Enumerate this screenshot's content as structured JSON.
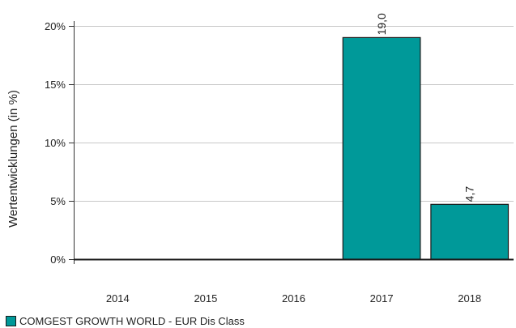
{
  "chart_data": {
    "type": "bar",
    "categories": [
      "2014",
      "2015",
      "2016",
      "2017",
      "2018"
    ],
    "series": [
      {
        "name": "COMGEST GROWTH WORLD - EUR Dis Class",
        "values": [
          null,
          null,
          null,
          19.0,
          4.7
        ],
        "data_labels": [
          "",
          "",
          "",
          "19,0",
          "4,7"
        ],
        "color": "#009999"
      }
    ],
    "ylabel": "Wertentwicklungen (in %)",
    "xlabel": "",
    "ylim": [
      0,
      20
    ],
    "yticks": [
      0,
      5,
      10,
      15,
      20
    ],
    "ytick_labels": [
      "0%",
      "5%",
      "10%",
      "15%",
      "20%"
    ],
    "grid": true,
    "legend_position": "bottom-left"
  }
}
